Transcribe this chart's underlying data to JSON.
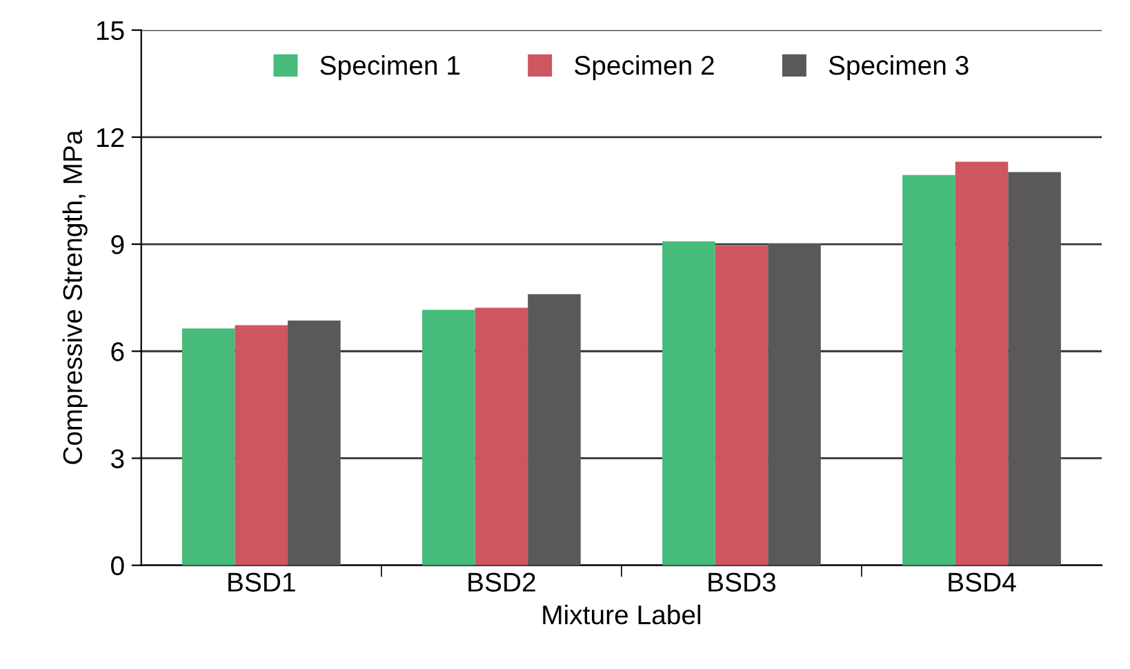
{
  "chart_data": {
    "type": "bar",
    "xlabel": "Mixture Label",
    "ylabel": "Compressive Strength, MPa",
    "categories": [
      "BSD1",
      "BSD2",
      "BSD3",
      "BSD4"
    ],
    "series": [
      {
        "name": "Specimen 1",
        "color": "#46bb7a",
        "values": [
          6.64,
          7.16,
          9.08,
          10.94
        ]
      },
      {
        "name": "Specimen 2",
        "color": "#cd5660",
        "values": [
          6.73,
          7.22,
          8.96,
          11.31
        ]
      },
      {
        "name": "Specimen 3",
        "color": "#5a5859",
        "values": [
          6.86,
          7.6,
          9.02,
          11.02
        ]
      }
    ],
    "ylim": [
      0,
      15
    ],
    "yticks": [
      0,
      3,
      6,
      9,
      12,
      15
    ],
    "grid": "y",
    "legend": "top"
  }
}
